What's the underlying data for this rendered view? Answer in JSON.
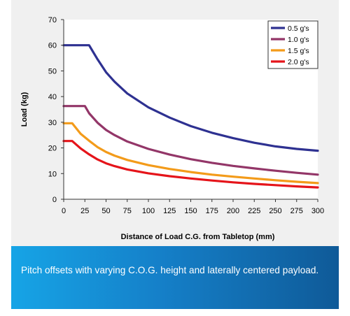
{
  "chart_data": {
    "type": "line",
    "title": "",
    "xlabel": "Distance of Load C.G. from Tabletop (mm)",
    "ylabel": "Load (kg)",
    "xlim": [
      0,
      300
    ],
    "ylim": [
      0,
      70
    ],
    "x_ticks": [
      "0",
      "25",
      "50",
      "75",
      "100",
      "125",
      "150",
      "175",
      "200",
      "225",
      "250",
      "275",
      "300"
    ],
    "y_ticks": [
      "0",
      "10",
      "20",
      "30",
      "40",
      "50",
      "60",
      "70"
    ],
    "grid": false,
    "legend_position": "top-right",
    "series": [
      {
        "name": "0.5 g's",
        "color": "#2e3191",
        "x": [
          0,
          25,
          30,
          40,
          50,
          60,
          75,
          100,
          125,
          150,
          175,
          200,
          225,
          250,
          275,
          300
        ],
        "values": [
          60,
          60,
          60,
          54.5,
          49.5,
          45.8,
          41.2,
          35.8,
          31.8,
          28.5,
          25.9,
          23.8,
          22.0,
          20.6,
          19.6,
          18.9
        ]
      },
      {
        "name": "1.0 g's",
        "color": "#933668",
        "x": [
          0,
          25,
          30,
          40,
          50,
          60,
          75,
          100,
          125,
          150,
          175,
          200,
          225,
          250,
          275,
          300
        ],
        "values": [
          36.3,
          36.3,
          33.5,
          29.8,
          27.0,
          25.0,
          22.5,
          19.6,
          17.4,
          15.6,
          14.2,
          13.0,
          12.0,
          11.1,
          10.3,
          9.6
        ]
      },
      {
        "name": "1.5 g's",
        "color": "#f39b1a",
        "x": [
          0,
          10,
          20,
          30,
          40,
          50,
          60,
          75,
          100,
          125,
          150,
          175,
          200,
          225,
          250,
          275,
          300
        ],
        "values": [
          29.6,
          29.6,
          25.5,
          22.8,
          20.3,
          18.4,
          17.0,
          15.3,
          13.3,
          11.8,
          10.6,
          9.6,
          8.8,
          8.1,
          7.4,
          6.8,
          6.3
        ]
      },
      {
        "name": "2.0 g's",
        "color": "#e5141a",
        "x": [
          0,
          10,
          20,
          30,
          40,
          50,
          60,
          75,
          100,
          125,
          150,
          175,
          200,
          225,
          250,
          275,
          300
        ],
        "values": [
          22.7,
          22.7,
          19.8,
          17.5,
          15.5,
          14.0,
          12.9,
          11.6,
          10.1,
          9.0,
          8.1,
          7.3,
          6.6,
          6.0,
          5.5,
          5.0,
          4.6
        ]
      }
    ]
  },
  "caption": {
    "text": "Pitch offsets with varying C.O.G. height and laterally centered payload."
  }
}
